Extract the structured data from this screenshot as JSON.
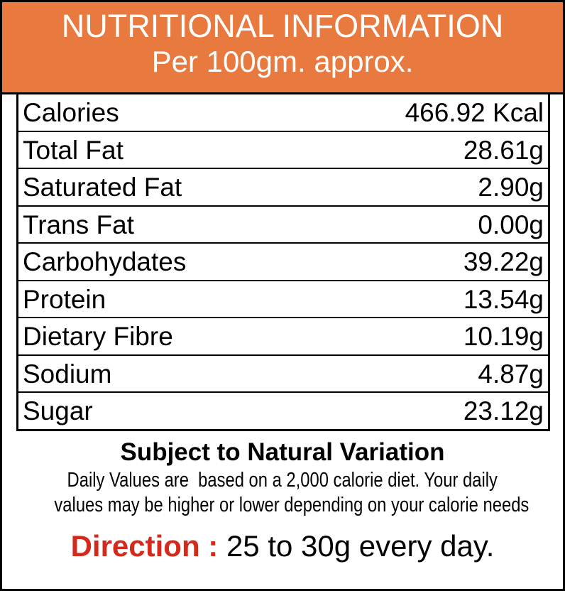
{
  "header": {
    "title": "NUTRITIONAL INFORMATION",
    "subtitle": "Per 100gm. approx."
  },
  "table": {
    "rows": [
      [
        "Calories",
        "466.92 Kcal"
      ],
      [
        "Total Fat",
        "28.61g"
      ],
      [
        "Saturated Fat",
        "2.90g"
      ],
      [
        "Trans Fat",
        "0.00g"
      ],
      [
        "Carbohydates",
        "39.22g"
      ],
      [
        "Protein",
        "13.54g"
      ],
      [
        "Dietary Fibre",
        "10.19g"
      ],
      [
        "Sodium",
        "4.87g"
      ],
      [
        "Sugar",
        "23.12g"
      ]
    ]
  },
  "footer": {
    "note_title": "Subject to Natural Variation",
    "note_lines": [
      "Daily Values are  based on a 2,000 calorie diet. Your daily",
      "values may be higher or lower depending on your calorie needs"
    ],
    "direction": {
      "label": "Direction :",
      "text": "25 to 30g every day."
    }
  }
}
